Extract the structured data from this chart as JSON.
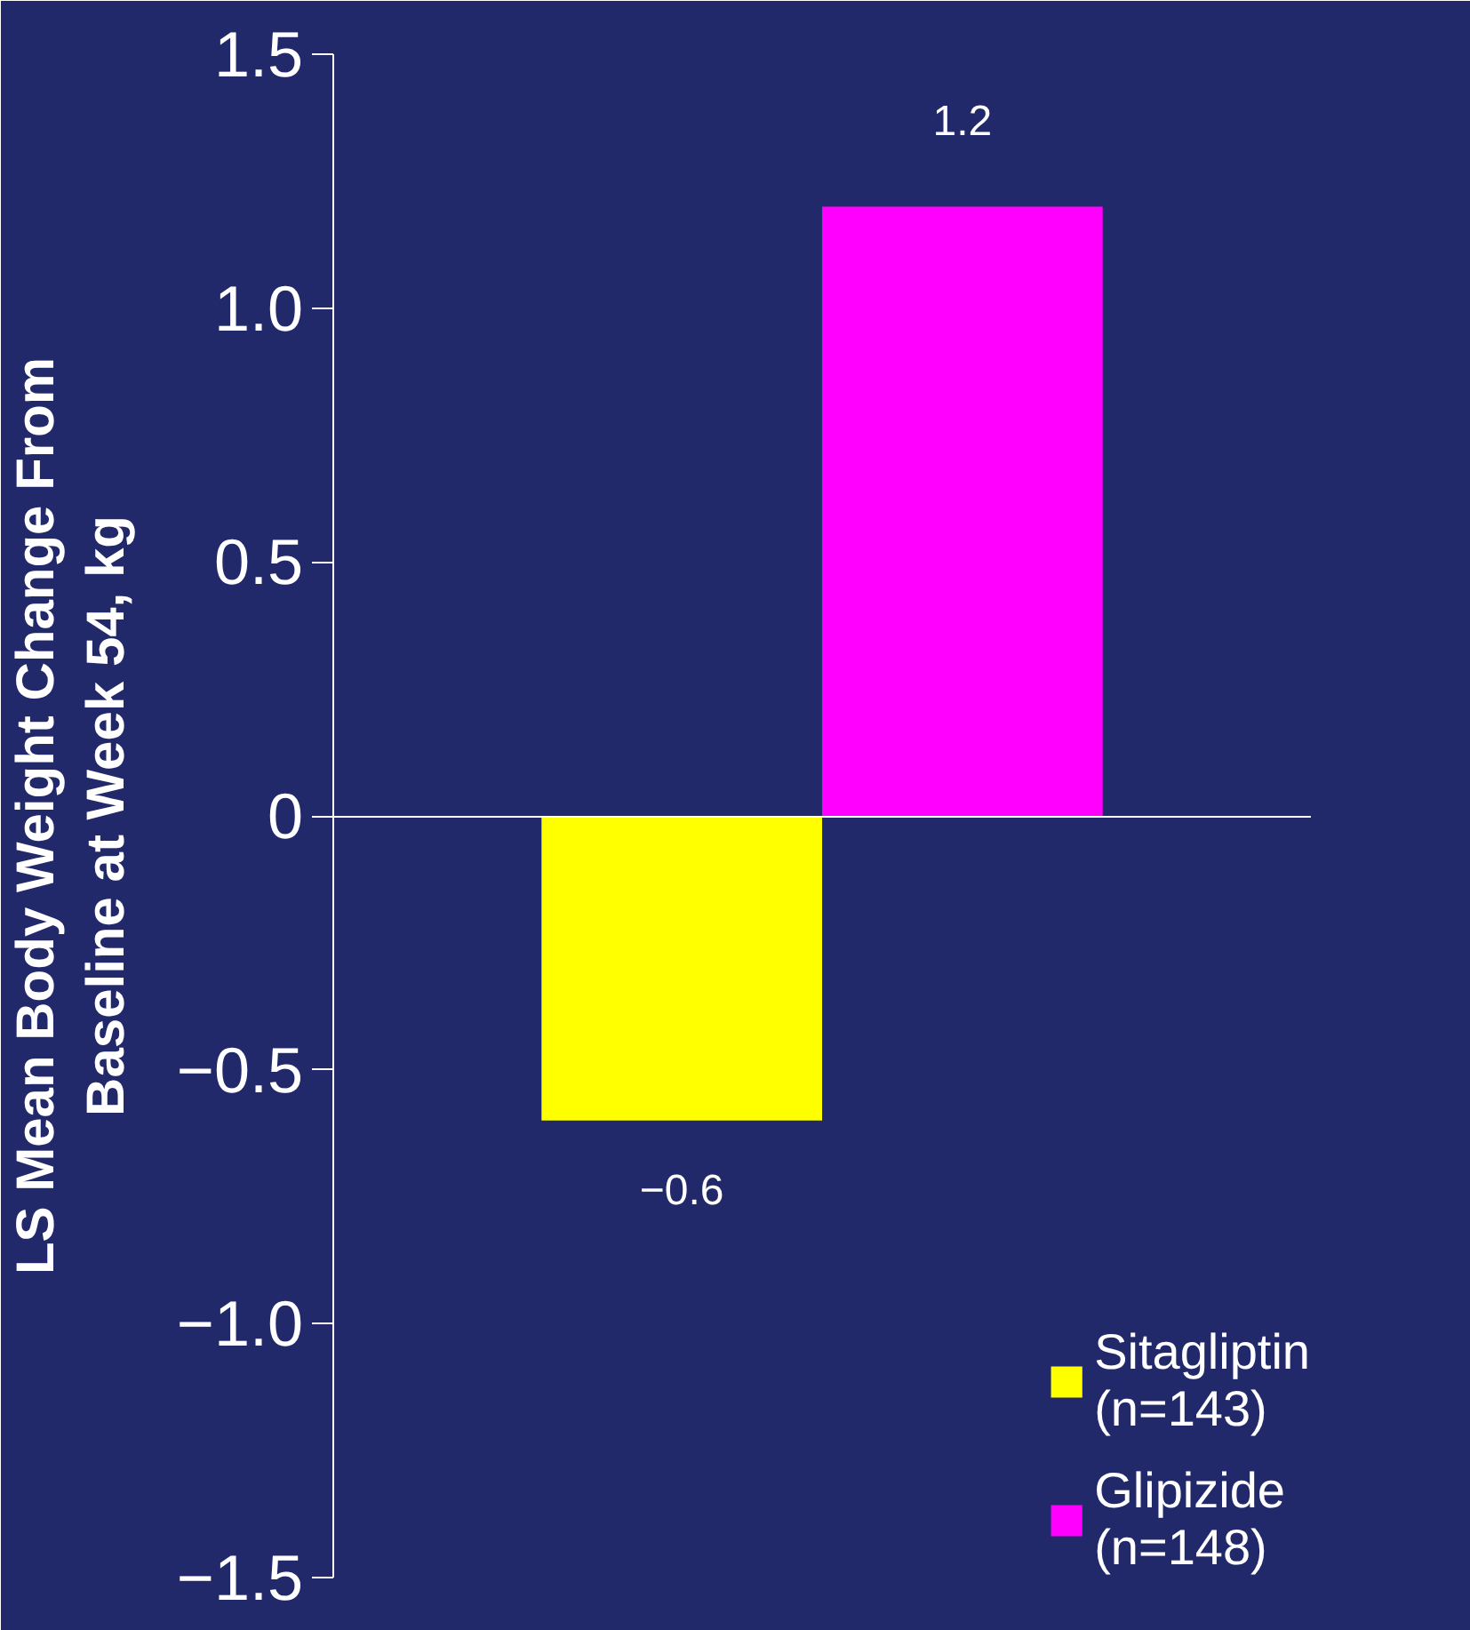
{
  "chart_data": {
    "type": "bar",
    "ylabel": "LS Mean Body Weight Change From\nBaseline at Week 54, kg",
    "categories": [
      null
    ],
    "series": [
      {
        "name": "Sitagliptin\n(n=143)",
        "color": "#ffff00",
        "values": [
          -0.6
        ],
        "value_labels": [
          "−0.6"
        ]
      },
      {
        "name": "Glipizide\n(n=148)",
        "color": "#ff00ff",
        "values": [
          1.2
        ],
        "value_labels": [
          "1.2"
        ]
      }
    ],
    "ylim": [
      -1.5,
      1.5
    ],
    "yticks": [
      {
        "value": -1.5,
        "label": "−1.5"
      },
      {
        "value": -1,
        "label": "−1.0"
      },
      {
        "value": -0.5,
        "label": "−0.5"
      },
      0,
      {
        "value": 0.5,
        "label": "0.5"
      },
      {
        "value": 1,
        "label": "1.0"
      },
      {
        "value": 1.5,
        "label": "1.5"
      }
    ],
    "legend": "bottom right",
    "tick_labels": "y"
  }
}
